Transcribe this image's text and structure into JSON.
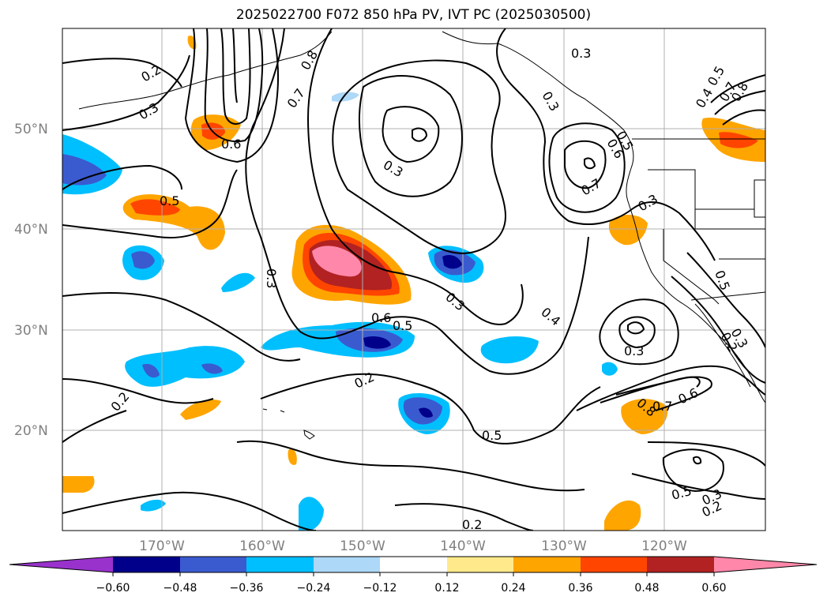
{
  "title": "2025022700 F072 850 hPa PV, IVT PC (2025030500)",
  "map": {
    "lat_labels": [
      "50°N",
      "40°N",
      "30°N",
      "20°N"
    ],
    "lon_labels": [
      "170°W",
      "160°W",
      "150°W",
      "140°W",
      "130°W",
      "120°W"
    ],
    "contour_labels": [
      "0.2",
      "0.3",
      "0.8",
      "0.7",
      "0.3",
      "0.3",
      "0.6",
      "0.5",
      "0.3",
      "0.3",
      "0.7",
      "0.6",
      "0.3",
      "0.5",
      "0.4",
      "0.6",
      "0.5",
      "0.3",
      "0.3",
      "0.2",
      "0.2",
      "0.5",
      "0.5",
      "0.8",
      "0.7",
      "0.6",
      "0.3",
      "0.2",
      "0.2",
      "0.8",
      "0.7",
      "0.4",
      "0.5",
      "0.5",
      "0.3",
      "0.2"
    ]
  },
  "colorbar": {
    "ticks": [
      "−0.60",
      "−0.48",
      "−0.36",
      "−0.24",
      "−0.12",
      "0.12",
      "0.24",
      "0.36",
      "0.48",
      "0.60"
    ],
    "colors": [
      "#9932cc",
      "#00008b",
      "#3a5bd0",
      "#00bfff",
      "#add8f7",
      "#ffffff",
      "#ffe98a",
      "#ffa500",
      "#ff4500",
      "#b22222",
      "#ff88aa"
    ]
  }
}
